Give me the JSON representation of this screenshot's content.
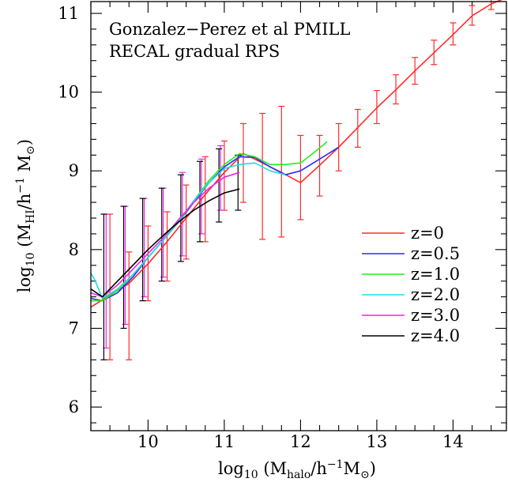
{
  "chart_data": {
    "type": "line",
    "annotation": [
      "Gonzalez−Perez et al PMILL",
      "RECAL gradual RPS"
    ],
    "xlabel": {
      "prefix": "log",
      "prefix_sub": "10",
      "open": " (M",
      "sub": "halo",
      "rest": "/h",
      "sup": "−1",
      "tail": "M",
      "tail_sub": "⊙",
      "close": ")"
    },
    "ylabel": {
      "prefix": "log",
      "prefix_sub": "10",
      "open": " (M",
      "sub": "HI",
      "rest": "/h",
      "sup": "−1",
      "tail": " M",
      "tail_sub": "⊙",
      "close": ")"
    },
    "xlim": [
      9.25,
      14.7
    ],
    "ylim": [
      5.7,
      11.15
    ],
    "xticks": [
      "10",
      "11",
      "12",
      "13",
      "14"
    ],
    "xtick_values": [
      10,
      11,
      12,
      13,
      14
    ],
    "yticks": [
      "6",
      "7",
      "8",
      "9",
      "10",
      "11"
    ],
    "ytick_values": [
      6,
      7,
      8,
      9,
      10,
      11
    ],
    "minor_x_step": 0.25,
    "minor_y_step": 0.2,
    "legend_position": "lower-right",
    "series": [
      {
        "name": "z=0",
        "color": "#ff2a2a",
        "x": [
          9.25,
          9.5,
          9.75,
          10.0,
          10.25,
          10.5,
          10.75,
          11.0,
          11.25,
          11.5,
          11.75,
          12.0,
          12.25,
          12.5,
          12.75,
          13.0,
          13.25,
          13.5,
          13.75,
          14.0,
          14.25,
          14.5,
          14.7
        ],
        "y": [
          7.27,
          7.42,
          7.57,
          7.82,
          8.1,
          8.4,
          8.7,
          8.98,
          9.22,
          9.1,
          8.98,
          8.85,
          9.07,
          9.3,
          9.55,
          9.8,
          10.03,
          10.27,
          10.5,
          10.73,
          10.97,
          11.12,
          11.2
        ],
        "err_x": [
          9.5,
          9.75,
          10.0,
          10.25,
          10.5,
          10.75,
          11.0,
          11.25,
          11.5,
          11.75,
          12.0,
          12.25,
          12.5,
          12.75,
          13.0,
          13.25,
          13.5,
          13.75,
          14.0,
          14.25,
          14.5
        ],
        "err_lo": [
          6.6,
          6.6,
          7.35,
          7.6,
          7.88,
          8.1,
          8.5,
          8.6,
          8.13,
          8.16,
          8.38,
          8.68,
          9.0,
          9.3,
          9.6,
          9.85,
          10.1,
          10.35,
          10.6,
          10.85,
          11.05
        ],
        "err_hi": [
          8.45,
          7.97,
          8.3,
          8.48,
          8.82,
          9.18,
          9.38,
          9.6,
          9.73,
          9.82,
          9.45,
          9.45,
          9.6,
          9.78,
          10.02,
          10.22,
          10.44,
          10.66,
          10.88,
          11.1,
          11.2
        ]
      },
      {
        "name": "z=0.5",
        "color": "#2a2aff",
        "x": [
          9.25,
          9.4,
          9.6,
          9.8,
          10.0,
          10.2,
          10.4,
          10.6,
          10.8,
          11.0,
          11.2,
          11.4,
          11.6,
          11.8,
          12.0,
          12.2,
          12.5
        ],
        "y": [
          7.38,
          7.35,
          7.45,
          7.65,
          7.9,
          8.12,
          8.35,
          8.6,
          8.85,
          9.05,
          9.18,
          9.17,
          9.05,
          8.95,
          9.0,
          9.12,
          9.3
        ]
      },
      {
        "name": "z=1.0",
        "color": "#22ee22",
        "x": [
          9.25,
          9.4,
          9.6,
          9.8,
          10.0,
          10.2,
          10.4,
          10.6,
          10.8,
          11.0,
          11.2,
          11.4,
          11.6,
          11.8,
          12.0,
          12.2,
          12.35
        ],
        "y": [
          7.35,
          7.35,
          7.48,
          7.68,
          7.9,
          8.12,
          8.35,
          8.62,
          8.88,
          9.08,
          9.22,
          9.18,
          9.08,
          9.08,
          9.1,
          9.25,
          9.37
        ]
      },
      {
        "name": "z=2.0",
        "color": "#22dddd",
        "x": [
          9.25,
          9.3,
          9.4,
          9.6,
          9.8,
          10.0,
          10.2,
          10.4,
          10.6,
          10.8,
          11.0,
          11.2,
          11.4,
          11.6,
          11.8
        ],
        "y": [
          7.7,
          7.62,
          7.38,
          7.5,
          7.68,
          7.9,
          8.12,
          8.36,
          8.62,
          8.85,
          9.03,
          9.08,
          9.1,
          9.0,
          8.95
        ]
      },
      {
        "name": "z=3.0",
        "color": "#ee22ee",
        "x": [
          9.25,
          9.4,
          9.6,
          9.8,
          10.0,
          10.2,
          10.4,
          10.6,
          10.8,
          11.0,
          11.2
        ],
        "y": [
          7.45,
          7.4,
          7.55,
          7.75,
          7.95,
          8.15,
          8.38,
          8.6,
          8.78,
          8.92,
          8.98
        ],
        "err_x": [
          9.45,
          9.7,
          9.95,
          10.2,
          10.45,
          10.7,
          10.95
        ],
        "err_lo": [
          6.75,
          7.05,
          7.4,
          7.65,
          7.92,
          8.2,
          8.5
        ],
        "err_hi": [
          8.45,
          8.55,
          8.65,
          8.78,
          8.98,
          9.15,
          9.32
        ]
      },
      {
        "name": "z=4.0",
        "color": "#000000",
        "x": [
          9.25,
          9.4,
          9.6,
          9.8,
          10.0,
          10.2,
          10.4,
          10.6,
          10.8,
          11.0,
          11.2
        ],
        "y": [
          7.5,
          7.4,
          7.6,
          7.8,
          8.0,
          8.18,
          8.35,
          8.5,
          8.62,
          8.72,
          8.77
        ],
        "err_x": [
          9.42,
          9.68,
          9.93,
          10.18,
          10.43,
          10.68,
          10.93,
          11.18
        ],
        "err_lo": [
          6.6,
          7.0,
          7.35,
          7.6,
          7.85,
          8.1,
          8.35,
          8.5
        ],
        "err_hi": [
          8.45,
          8.55,
          8.65,
          8.78,
          8.95,
          9.12,
          9.28,
          9.2
        ]
      }
    ]
  }
}
